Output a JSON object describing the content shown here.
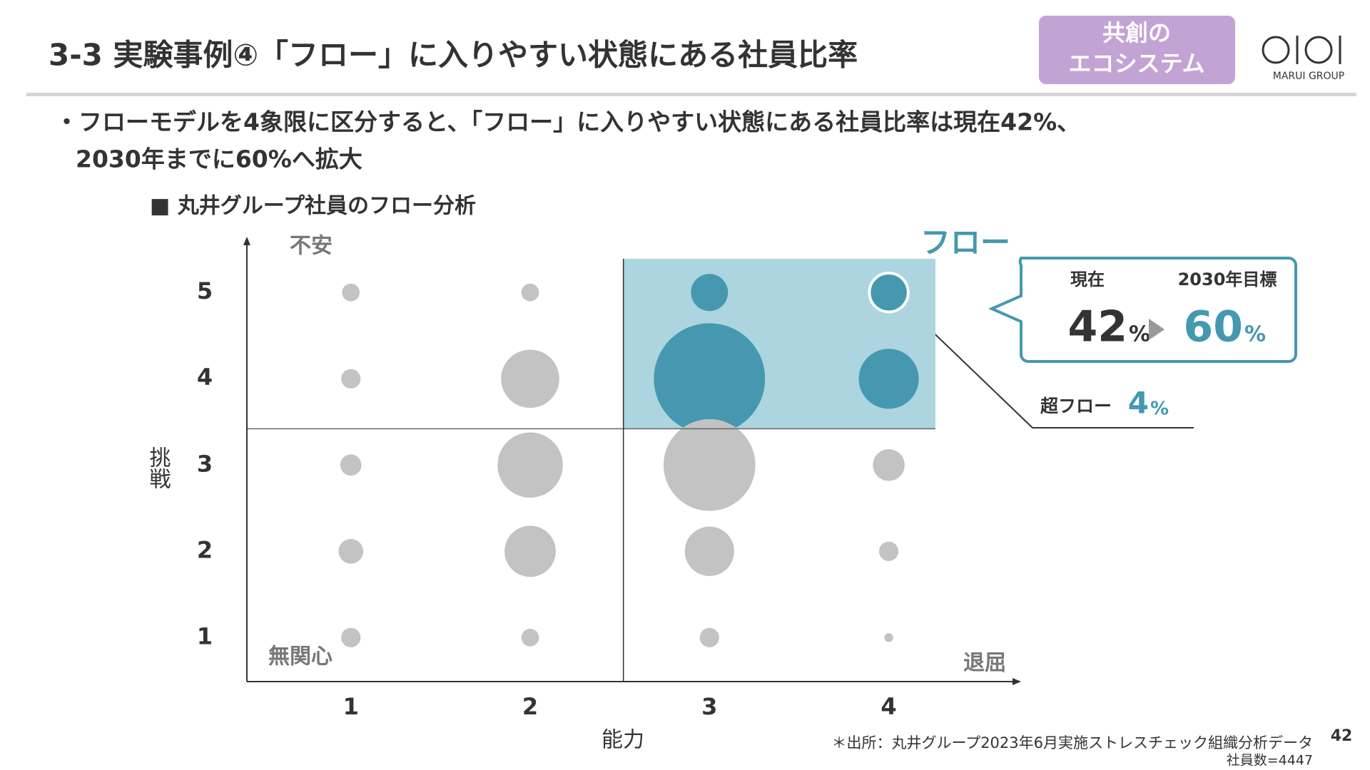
{
  "header": {
    "title": "3-3 実験事例④「フロー」に入りやすい状態にある社員比率",
    "badge": [
      "共創の",
      "エコシステム"
    ],
    "logo": "MARUI GROUP"
  },
  "bullet": [
    "・フローモデルを4象限に区分すると、「フロー」に入りやすい状態にある社員比率は現在42%、",
    "2030年までに60%へ拡大"
  ],
  "chart_data": {
    "type": "bubble",
    "title": "■ 丸井グループ社員のフロー分析",
    "x_label": "能力",
    "y_label": "挑戦",
    "corner_labels": {
      "top_left": "不安",
      "bottom_left": "無関心",
      "bottom_right": "退屈",
      "top_right": "フロー"
    },
    "x": [
      1,
      1,
      1,
      1,
      1,
      2,
      2,
      2,
      2,
      2,
      3,
      3,
      3,
      3,
      3,
      4,
      4,
      4,
      4,
      4
    ],
    "y": [
      5,
      4,
      3,
      2,
      1,
      5,
      4,
      3,
      2,
      1,
      5,
      4,
      3,
      2,
      1,
      5,
      4,
      3,
      2,
      1
    ],
    "sizes": [
      20,
      22,
      24,
      28,
      22,
      20,
      66,
      74,
      58,
      20,
      42,
      126,
      104,
      56,
      22,
      44,
      68,
      36,
      22,
      10
    ],
    "color": "#c3c3c3",
    "highlight_color": "#4598b0",
    "highlight_fill": "#acd5df",
    "highlight": {
      "xlim": [
        2.52,
        4.26
      ],
      "ylim": [
        3.42,
        5.39
      ]
    },
    "divider": {
      "x": 2.52,
      "y": 3.42
    },
    "ring_point": 15,
    "xlim": [
      0.42,
      4.73
    ],
    "ylim": [
      0.49,
      5.63
    ],
    "xticks": [
      1,
      2,
      3,
      4
    ],
    "yticks": [
      1,
      2,
      3,
      4,
      5
    ]
  },
  "callout": {
    "current_label": "現在",
    "current": {
      "value": "42",
      "unit": "%"
    },
    "target_label": "2030年目標",
    "target": {
      "value": "60",
      "unit": "%"
    },
    "super_label": "超フロー",
    "super": {
      "value": "4",
      "unit": "%"
    }
  },
  "footer": {
    "source": "＊出所：丸井グループ2023年6月実施ストレスチェック組織分析データ",
    "n": "社員数=4447",
    "page": "42"
  }
}
